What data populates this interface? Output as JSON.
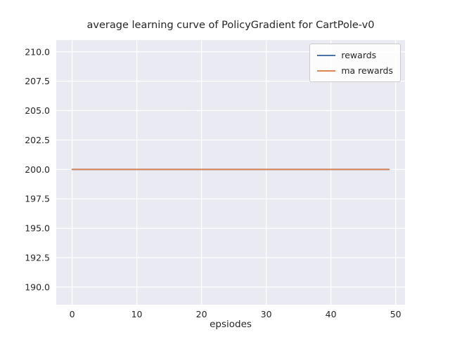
{
  "chart_data": {
    "type": "line",
    "title": "average learning curve of PolicyGradient for CartPole-v0",
    "xlabel": "epsiodes",
    "ylabel": "",
    "grid": true,
    "legend_position": "upper right",
    "plot_bg": "#eaeaf2",
    "grid_color": "#ffffff",
    "xlim": [
      -2.45,
      51.45
    ],
    "ylim": [
      188.5,
      211.0
    ],
    "x_ticks": [
      0,
      10,
      20,
      30,
      40,
      50
    ],
    "x_tick_labels": [
      "0",
      "10",
      "20",
      "30",
      "40",
      "50"
    ],
    "y_ticks": [
      190.0,
      192.5,
      195.0,
      197.5,
      200.0,
      202.5,
      205.0,
      207.5,
      210.0
    ],
    "y_tick_labels": [
      "190.0",
      "192.5",
      "195.0",
      "197.5",
      "200.0",
      "202.5",
      "205.0",
      "207.5",
      "210.0"
    ],
    "x": [
      0,
      1,
      2,
      3,
      4,
      5,
      6,
      7,
      8,
      9,
      10,
      11,
      12,
      13,
      14,
      15,
      16,
      17,
      18,
      19,
      20,
      21,
      22,
      23,
      24,
      25,
      26,
      27,
      28,
      29,
      30,
      31,
      32,
      33,
      34,
      35,
      36,
      37,
      38,
      39,
      40,
      41,
      42,
      43,
      44,
      45,
      46,
      47,
      48,
      49
    ],
    "series": [
      {
        "name": "rewards",
        "color": "#4c72b0",
        "values": [
          200,
          200,
          200,
          200,
          200,
          200,
          200,
          200,
          200,
          200,
          200,
          200,
          200,
          200,
          200,
          200,
          200,
          200,
          200,
          200,
          200,
          200,
          200,
          200,
          200,
          200,
          200,
          200,
          200,
          200,
          200,
          200,
          200,
          200,
          200,
          200,
          200,
          200,
          200,
          200,
          200,
          200,
          200,
          200,
          200,
          200,
          200,
          200,
          200,
          200
        ]
      },
      {
        "name": "ma rewards",
        "color": "#dd8452",
        "values": [
          200,
          200,
          200,
          200,
          200,
          200,
          200,
          200,
          200,
          200,
          200,
          200,
          200,
          200,
          200,
          200,
          200,
          200,
          200,
          200,
          200,
          200,
          200,
          200,
          200,
          200,
          200,
          200,
          200,
          200,
          200,
          200,
          200,
          200,
          200,
          200,
          200,
          200,
          200,
          200,
          200,
          200,
          200,
          200,
          200,
          200,
          200,
          200,
          200,
          200
        ]
      }
    ]
  }
}
